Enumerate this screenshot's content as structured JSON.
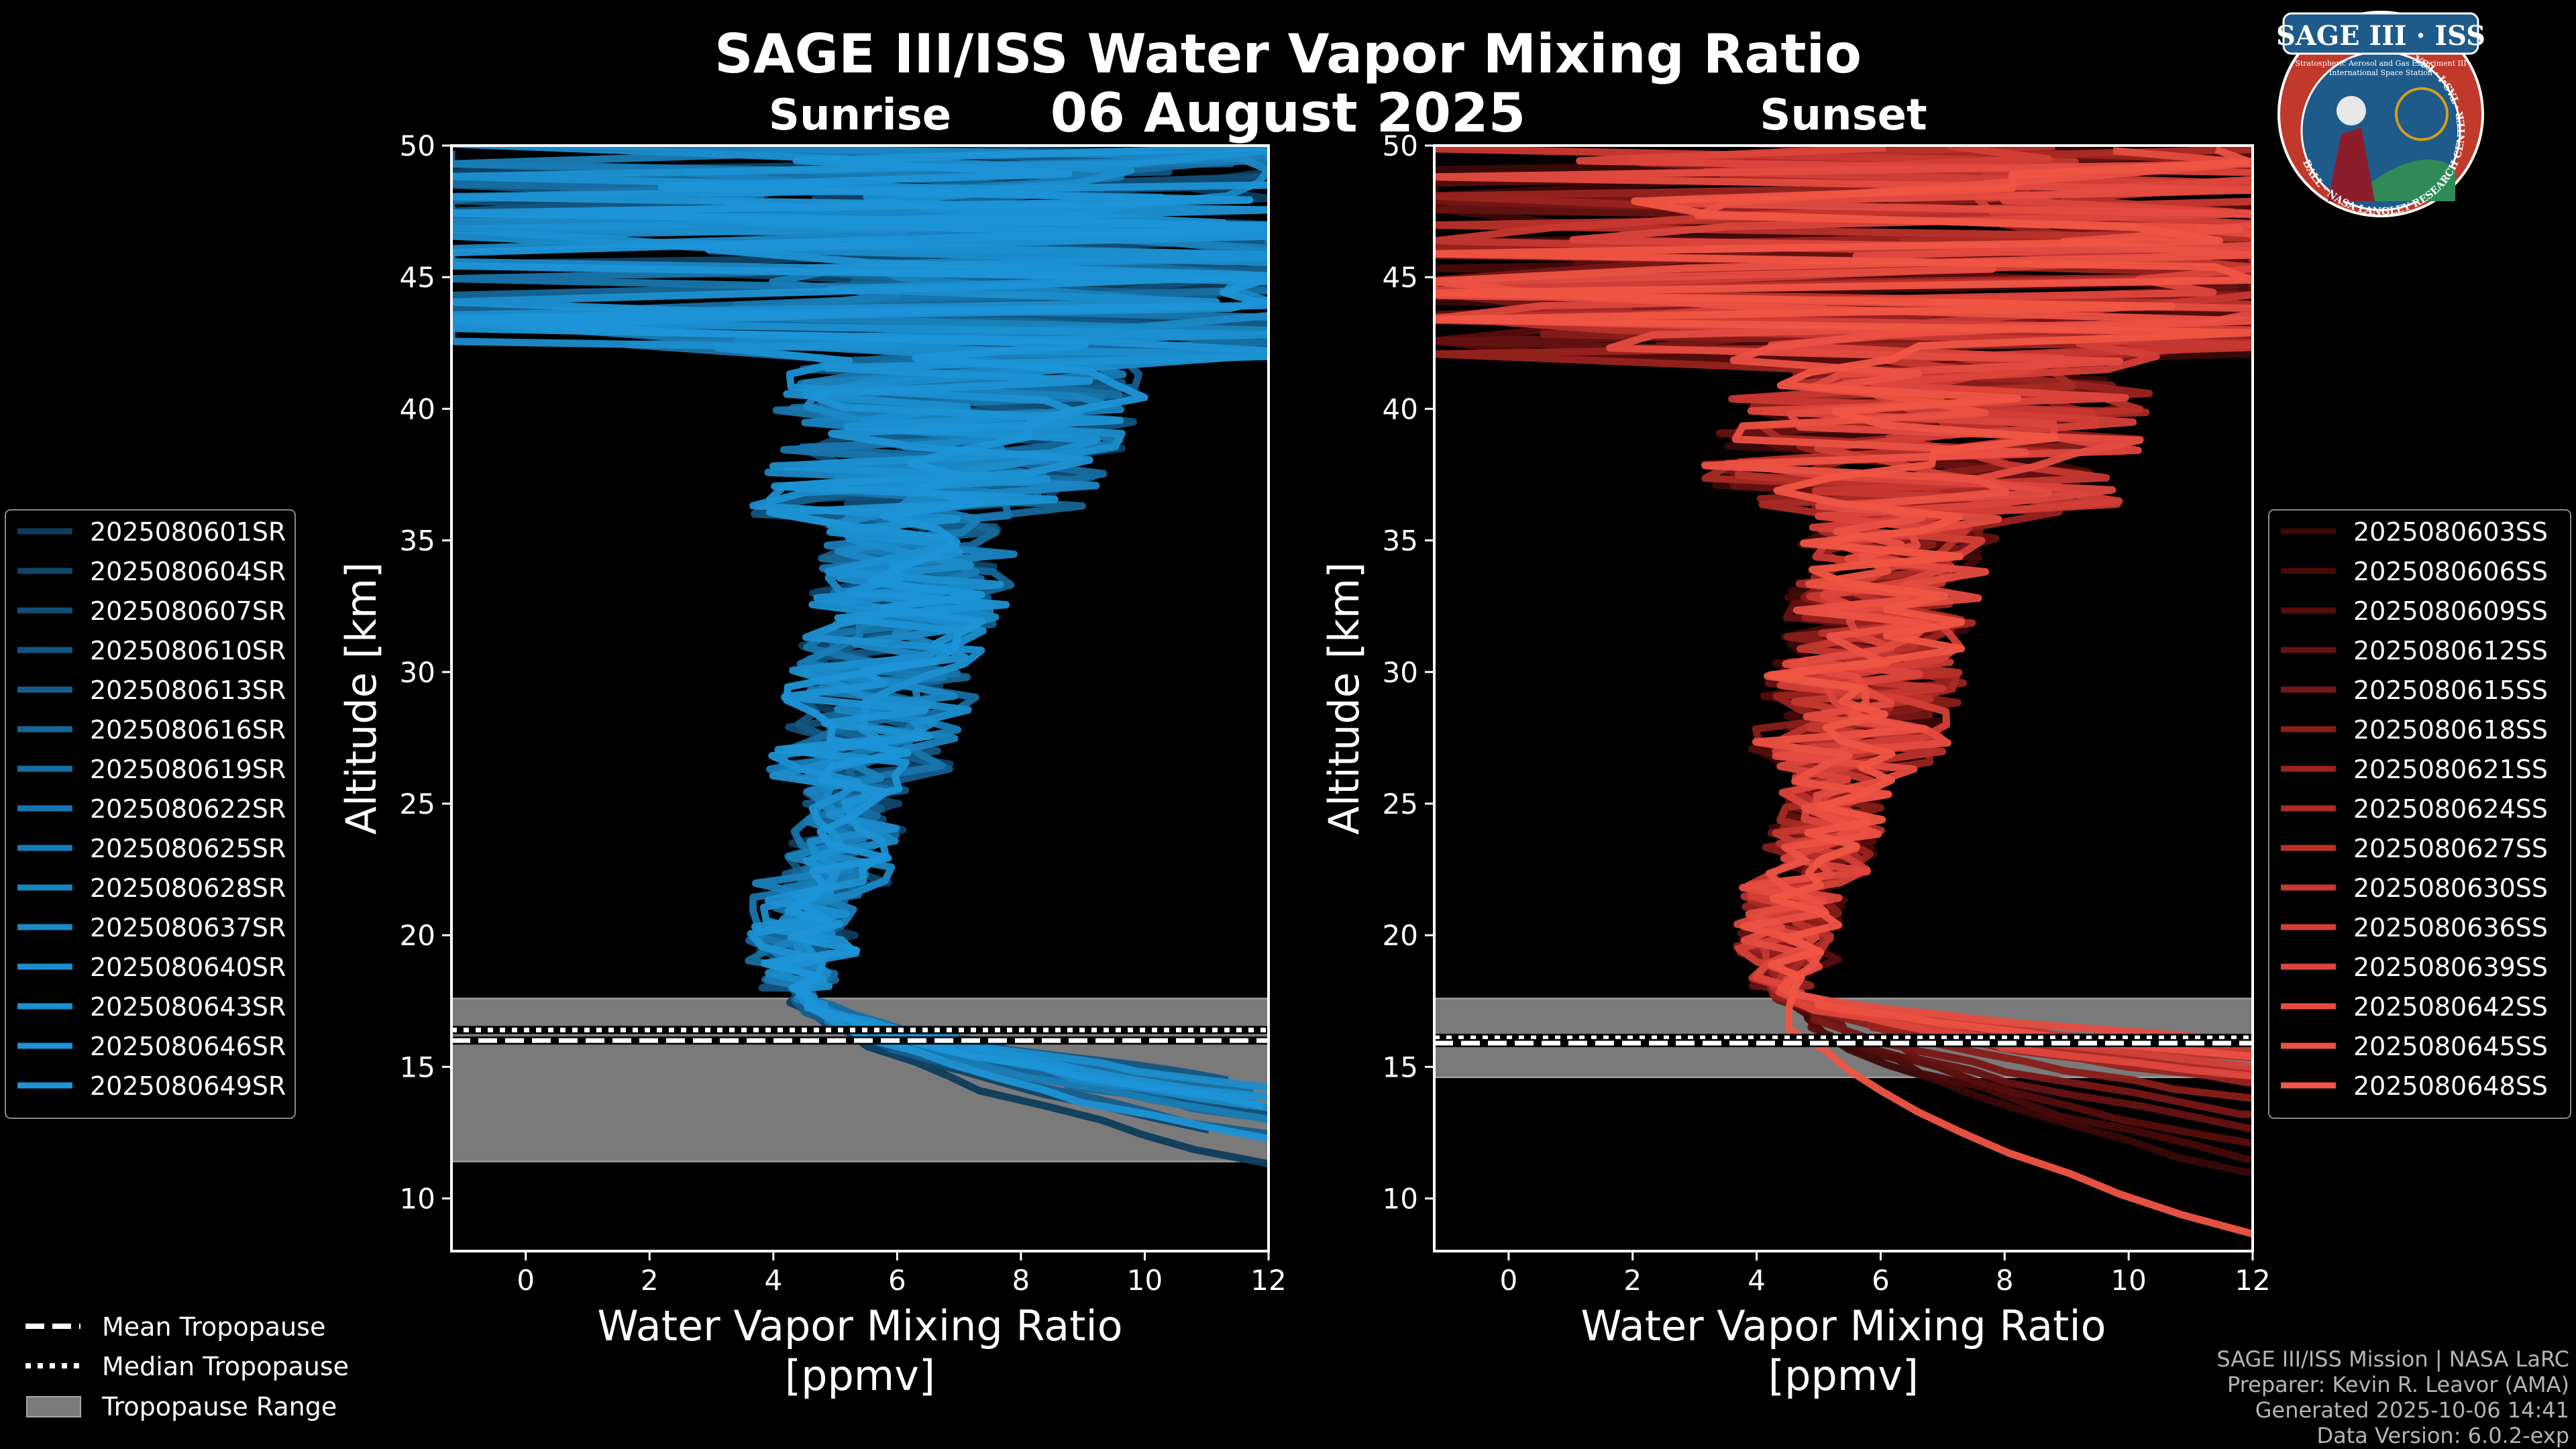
{
  "header": {
    "title": "SAGE III/ISS Water Vapor Mixing Ratio",
    "date": "06 August 2025",
    "left_subtitle": "Sunrise",
    "right_subtitle": "Sunset"
  },
  "badge": {
    "title": "SAGE III · ISS",
    "ring_text": "BALL · NASA LANGLEY RESEARCH CENTER · TAS-I · ESA",
    "line1": "Stratospheric Aerosol and Gas Experiment III",
    "line2": "International Space Station",
    "colors": {
      "ring": "#c0392b",
      "field": "#1e5a8a",
      "gold": "#d4a017"
    }
  },
  "credits": {
    "line1": "SAGE III/ISS Mission | NASA LaRC",
    "line2": "Preparer: Kevin R. Leavor (AMA)",
    "line3": "Generated 2025-10-06 14:41",
    "line4": "Data Version: 6.0.2-exp"
  },
  "colors": {
    "sunrise": "#1d8fd6",
    "sunset": "#f05545",
    "tropopause_band": "#7a7a7a",
    "axes": "#ffffff"
  },
  "bottom_legend": {
    "mean": "Mean Tropopause",
    "median": "Median Tropopause",
    "range": "Tropopause Range"
  },
  "chart_data": [
    {
      "type": "line",
      "panel": "sunrise",
      "title": "Sunrise",
      "xlabel": "Water Vapor Mixing Ratio\n[ppmv]",
      "ylabel": "Altitude [km]",
      "xlim": [
        -1.2,
        12
      ],
      "ylim": [
        8,
        50
      ],
      "xticks": [
        0,
        2,
        4,
        6,
        8,
        10,
        12
      ],
      "yticks": [
        10,
        15,
        20,
        25,
        30,
        35,
        40,
        45,
        50
      ],
      "tropopause": {
        "mean": 16.0,
        "median": 16.4,
        "range": [
          11.4,
          17.6
        ]
      },
      "series": [
        {
          "name": "2025080601SR",
          "color": "#0d3d5c",
          "bottom_km": 11.3,
          "end_ppmv": 12.0
        },
        {
          "name": "2025080604SR",
          "color": "#0f4568",
          "bottom_km": 12.6,
          "end_ppmv": 11.0
        },
        {
          "name": "2025080607SR",
          "color": "#114e75",
          "bottom_km": 13.2,
          "end_ppmv": 12.0
        },
        {
          "name": "2025080610SR",
          "color": "#135681",
          "bottom_km": 14.5,
          "end_ppmv": 11.5
        },
        {
          "name": "2025080613SR",
          "color": "#155e8c",
          "bottom_km": 12.4,
          "end_ppmv": 12.0
        },
        {
          "name": "2025080616SR",
          "color": "#166697",
          "bottom_km": 13.0,
          "end_ppmv": 12.0
        },
        {
          "name": "2025080619SR",
          "color": "#176ea2",
          "bottom_km": 14.0,
          "end_ppmv": 12.0
        },
        {
          "name": "2025080622SR",
          "color": "#1875ac",
          "bottom_km": 13.6,
          "end_ppmv": 12.0
        },
        {
          "name": "2025080625SR",
          "color": "#197cb5",
          "bottom_km": 12.9,
          "end_ppmv": 12.0
        },
        {
          "name": "2025080628SR",
          "color": "#1a82bd",
          "bottom_km": 14.8,
          "end_ppmv": 9.0
        },
        {
          "name": "2025080637SR",
          "color": "#1b88c5",
          "bottom_km": 13.4,
          "end_ppmv": 12.0
        },
        {
          "name": "2025080640SR",
          "color": "#1c8dcc",
          "bottom_km": 14.2,
          "end_ppmv": 12.0
        },
        {
          "name": "2025080643SR",
          "color": "#1c90d1",
          "bottom_km": 13.8,
          "end_ppmv": 12.0
        },
        {
          "name": "2025080646SR",
          "color": "#1d92d4",
          "bottom_km": 12.2,
          "end_ppmv": 12.0
        },
        {
          "name": "2025080649SR",
          "color": "#1d95d8",
          "bottom_km": 13.5,
          "end_ppmv": 12.0
        }
      ]
    },
    {
      "type": "line",
      "panel": "sunset",
      "title": "Sunset",
      "xlabel": "Water Vapor Mixing Ratio\n[ppmv]",
      "ylabel": "Altitude [km]",
      "xlim": [
        -1.2,
        12
      ],
      "ylim": [
        8,
        50
      ],
      "xticks": [
        0,
        2,
        4,
        6,
        8,
        10,
        12
      ],
      "yticks": [
        10,
        15,
        20,
        25,
        30,
        35,
        40,
        45,
        50
      ],
      "tropopause": {
        "mean": 15.9,
        "median": 16.1,
        "range": [
          14.6,
          17.6
        ]
      },
      "series": [
        {
          "name": "2025080603SS",
          "color": "#3a0808",
          "bottom_km": 11.0,
          "end_ppmv": 12.0
        },
        {
          "name": "2025080606SS",
          "color": "#470a0a",
          "bottom_km": 11.5,
          "end_ppmv": 12.0
        },
        {
          "name": "2025080609SS",
          "color": "#560d0d",
          "bottom_km": 12.0,
          "end_ppmv": 12.0
        },
        {
          "name": "2025080612SS",
          "color": "#661212",
          "bottom_km": 12.6,
          "end_ppmv": 12.0
        },
        {
          "name": "2025080615SS",
          "color": "#771716",
          "bottom_km": 13.2,
          "end_ppmv": 12.0
        },
        {
          "name": "2025080618SS",
          "color": "#881d1a",
          "bottom_km": 13.8,
          "end_ppmv": 12.0
        },
        {
          "name": "2025080621SS",
          "color": "#99231f",
          "bottom_km": 14.4,
          "end_ppmv": 12.0
        },
        {
          "name": "2025080624SS",
          "color": "#aa2a25",
          "bottom_km": 14.8,
          "end_ppmv": 12.0
        },
        {
          "name": "2025080627SS",
          "color": "#b9312b",
          "bottom_km": 15.3,
          "end_ppmv": 12.0
        },
        {
          "name": "2025080630SS",
          "color": "#c73831",
          "bottom_km": 15.6,
          "end_ppmv": 12.0
        },
        {
          "name": "2025080636SS",
          "color": "#d33f37",
          "bottom_km": 15.0,
          "end_ppmv": 12.0
        },
        {
          "name": "2025080639SS",
          "color": "#dd463c",
          "bottom_km": 14.6,
          "end_ppmv": 12.0
        },
        {
          "name": "2025080642SS",
          "color": "#e54c40",
          "bottom_km": 16.0,
          "end_ppmv": 12.0
        },
        {
          "name": "2025080645SS",
          "color": "#eb5143",
          "bottom_km": 15.4,
          "end_ppmv": 12.0
        },
        {
          "name": "2025080648SS",
          "color": "#f05545",
          "bottom_km": 8.6,
          "end_ppmv": 12.0
        }
      ]
    }
  ]
}
